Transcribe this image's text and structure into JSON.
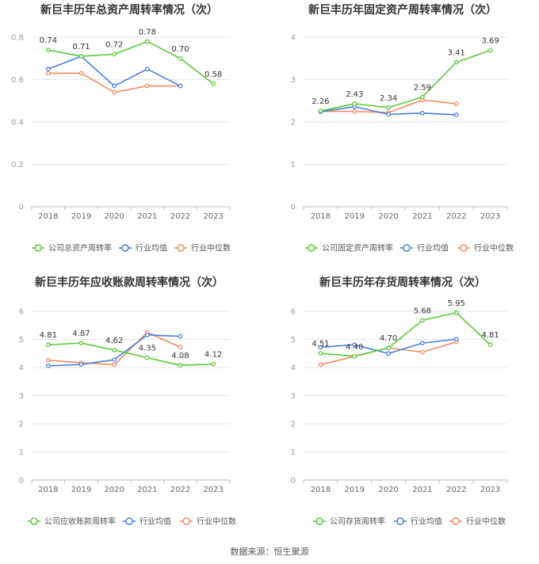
{
  "footer": {
    "source": "数据来源：恒生聚源"
  },
  "colors": {
    "company": "#5cc93b",
    "industry_avg": "#4a7fe0",
    "industry_median": "#f28b62",
    "grid": "#e6e6e6",
    "axis": "#999999",
    "title": "#333333"
  },
  "chart_data": [
    {
      "type": "line",
      "title": "新巨丰历年总资产周转率情况（次）",
      "categories": [
        "2018",
        "2019",
        "2020",
        "2021",
        "2022",
        "2023"
      ],
      "ylim": [
        0,
        0.8
      ],
      "yticks": [
        "0",
        "0.2",
        "0.4",
        "0.6",
        "0.8"
      ],
      "ytick_values": [
        0,
        0.2,
        0.4,
        0.6,
        0.8
      ],
      "grid": true,
      "legend_position": "bottom",
      "series": [
        {
          "name": "公司总资产周转率",
          "role": "company",
          "values": [
            0.74,
            0.71,
            0.72,
            0.78,
            0.7,
            0.58
          ],
          "labels": [
            "0.74",
            "0.71",
            "0.72",
            "0.78",
            "0.70",
            "0.58"
          ]
        },
        {
          "name": "行业均值",
          "role": "industry_avg",
          "values": [
            0.65,
            0.71,
            0.57,
            0.65,
            0.57,
            null
          ]
        },
        {
          "name": "行业中位数",
          "role": "industry_median",
          "values": [
            0.63,
            0.63,
            0.54,
            0.57,
            0.57,
            null
          ]
        }
      ]
    },
    {
      "type": "line",
      "title": "新巨丰历年固定资产周转率情况（次）",
      "categories": [
        "2018",
        "2019",
        "2020",
        "2021",
        "2022",
        "2023"
      ],
      "ylim": [
        0,
        4
      ],
      "yticks": [
        "0",
        "1",
        "2",
        "3",
        "4"
      ],
      "ytick_values": [
        0,
        1,
        2,
        3,
        4
      ],
      "grid": true,
      "legend_position": "bottom",
      "series": [
        {
          "name": "公司固定资产周转率",
          "role": "company",
          "values": [
            2.26,
            2.43,
            2.34,
            2.59,
            3.41,
            3.69
          ],
          "labels": [
            "2.26",
            "2.43",
            "2.34",
            "2.59",
            "3.41",
            "3.69"
          ]
        },
        {
          "name": "行业均值",
          "role": "industry_avg",
          "values": [
            2.24,
            2.36,
            2.18,
            2.21,
            2.17,
            null
          ]
        },
        {
          "name": "行业中位数",
          "role": "industry_median",
          "values": [
            2.25,
            2.25,
            2.22,
            2.52,
            2.43,
            null
          ]
        }
      ]
    },
    {
      "type": "line",
      "title": "新巨丰历年应收账款周转率情况（次）",
      "categories": [
        "2018",
        "2019",
        "2020",
        "2021",
        "2022",
        "2023"
      ],
      "ylim": [
        0,
        6
      ],
      "yticks": [
        "0",
        "1",
        "2",
        "3",
        "4",
        "5",
        "6"
      ],
      "ytick_values": [
        0,
        1,
        2,
        3,
        4,
        5,
        6
      ],
      "grid": true,
      "legend_position": "bottom",
      "series": [
        {
          "name": "公司应收账款周转率",
          "role": "company",
          "values": [
            4.81,
            4.87,
            4.62,
            4.35,
            4.08,
            4.12
          ],
          "labels": [
            "4.81",
            "4.87",
            "4.62",
            "4.35",
            "4.08",
            "4.12"
          ]
        },
        {
          "name": "行业均值",
          "role": "industry_avg",
          "values": [
            4.06,
            4.11,
            4.28,
            5.16,
            5.11,
            null
          ]
        },
        {
          "name": "行业中位数",
          "role": "industry_median",
          "values": [
            4.26,
            4.17,
            4.1,
            5.25,
            4.73,
            null
          ]
        }
      ]
    },
    {
      "type": "line",
      "title": "新巨丰历年存货周转率情况（次）",
      "categories": [
        "2018",
        "2019",
        "2020",
        "2021",
        "2022",
        "2023"
      ],
      "ylim": [
        0,
        6
      ],
      "yticks": [
        "0",
        "1",
        "2",
        "3",
        "4",
        "5",
        "6"
      ],
      "ytick_values": [
        0,
        1,
        2,
        3,
        4,
        5,
        6
      ],
      "grid": true,
      "legend_position": "bottom",
      "series": [
        {
          "name": "公司存货周转率",
          "role": "company",
          "values": [
            4.51,
            4.4,
            4.7,
            5.68,
            5.95,
            4.81
          ],
          "labels": [
            "4.51",
            "4.40",
            "4.70",
            "5.68",
            "5.95",
            "4.81"
          ]
        },
        {
          "name": "行业均值",
          "role": "industry_avg",
          "values": [
            4.72,
            4.81,
            4.5,
            4.87,
            5.01,
            null
          ]
        },
        {
          "name": "行业中位数",
          "role": "industry_median",
          "values": [
            4.1,
            4.4,
            4.7,
            4.55,
            4.91,
            null
          ]
        }
      ]
    }
  ]
}
